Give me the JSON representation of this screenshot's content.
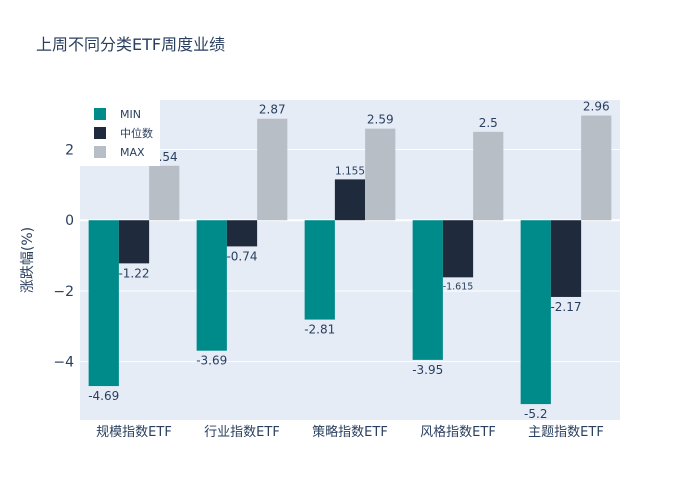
{
  "chart_data": {
    "type": "bar",
    "title": "上周不同分类ETF周度业绩",
    "xlabel": "",
    "ylabel": "涨跌幅(%)",
    "categories": [
      "规模指数ETF",
      "行业指数ETF",
      "策略指数ETF",
      "风格指数ETF",
      "主题指数ETF"
    ],
    "series": [
      {
        "name": "MIN",
        "color": "#008b8b",
        "values": [
          -4.69,
          -3.69,
          -2.81,
          -3.95,
          -5.2
        ],
        "labels": [
          "-4.69",
          "-3.69",
          "-2.81",
          "-3.95",
          "-5.2"
        ]
      },
      {
        "name": "中位数",
        "color": "#1f2a3c",
        "values": [
          -1.22,
          -0.74,
          1.155,
          -1.615,
          -2.17
        ],
        "labels": [
          "-1.22",
          "-0.74",
          "1.155",
          "-1.615",
          "-2.17"
        ]
      },
      {
        "name": "MAX",
        "color": "#b8bec6",
        "values": [
          1.54,
          2.87,
          2.59,
          2.5,
          2.96
        ],
        "labels": [
          "1.54",
          "2.87",
          "2.59",
          "2.5",
          "2.96"
        ]
      }
    ],
    "ylim": [
      -5.65,
      3.4
    ],
    "yticks": [
      -4,
      -2,
      0,
      2
    ],
    "ytick_labels": [
      "−4",
      "−2",
      "0",
      "2"
    ],
    "grid": true,
    "legend_position": "top-left",
    "colors": {
      "plot_bg": "#e5ecf6",
      "grid": "#ffffff",
      "text": "#2a3f5f"
    }
  }
}
